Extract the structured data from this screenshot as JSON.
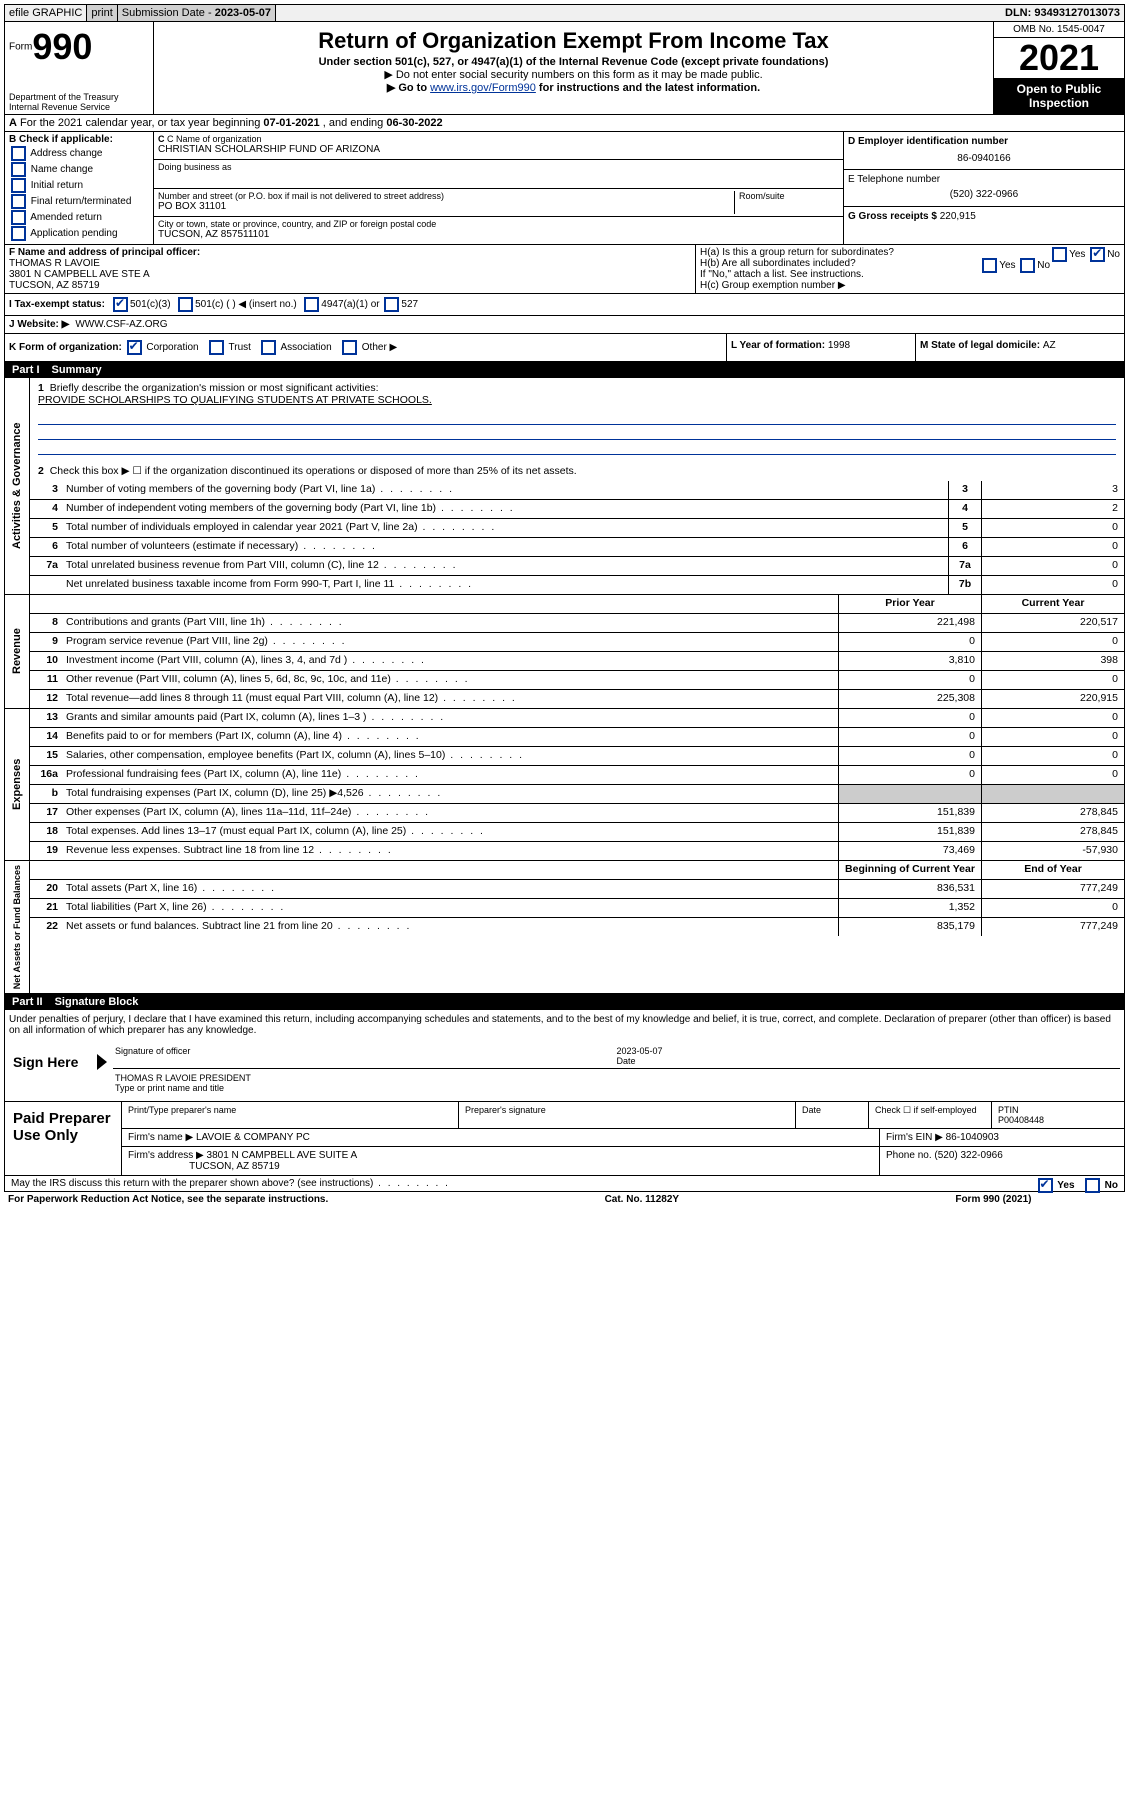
{
  "topbar": {
    "efile": "efile GRAPHIC",
    "print": "print",
    "submission_label": "Submission Date - ",
    "submission_date": "2023-05-07",
    "dln_label": "DLN: ",
    "dln": "93493127013073"
  },
  "header": {
    "form_prefix": "Form",
    "form_number": "990",
    "dept": "Department of the Treasury",
    "irs": "Internal Revenue Service",
    "title": "Return of Organization Exempt From Income Tax",
    "subtitle": "Under section 501(c), 527, or 4947(a)(1) of the Internal Revenue Code (except private foundations)",
    "note1": "▶ Do not enter social security numbers on this form as it may be made public.",
    "note2_pre": "▶ Go to ",
    "note2_link": "www.irs.gov/Form990",
    "note2_post": " for instructions and the latest information.",
    "omb": "OMB No. 1545-0047",
    "year": "2021",
    "open": "Open to Public Inspection"
  },
  "row_a": {
    "text_pre": "For the 2021 calendar year, or tax year beginning ",
    "begin": "07-01-2021",
    "text_mid": " , and ending ",
    "end": "06-30-2022"
  },
  "col_b": {
    "header": "B Check if applicable:",
    "items": [
      "Address change",
      "Name change",
      "Initial return",
      "Final return/terminated",
      "Amended return",
      "Application pending"
    ]
  },
  "col_c": {
    "name_label": "C Name of organization",
    "name": "CHRISTIAN SCHOLARSHIP FUND OF ARIZONA",
    "dba_label": "Doing business as",
    "dba": "",
    "addr_label": "Number and street (or P.O. box if mail is not delivered to street address)",
    "room_label": "Room/suite",
    "addr": "PO BOX 31101",
    "city_label": "City or town, state or province, country, and ZIP or foreign postal code",
    "city": "TUCSON, AZ  857511101"
  },
  "col_de": {
    "d_label": "D Employer identification number",
    "ein": "86-0940166",
    "e_label": "E Telephone number",
    "phone": "(520) 322-0966",
    "g_label": "G Gross receipts $",
    "gross": "220,915"
  },
  "row_f": {
    "label": "F Name and address of principal officer:",
    "name": "THOMAS R LAVOIE",
    "addr": "3801 N CAMPBELL AVE STE A",
    "city": "TUCSON, AZ  85719"
  },
  "row_h": {
    "ha": "H(a)  Is this a group return for subordinates?",
    "ha_yes": "Yes",
    "ha_no": "No",
    "hb": "H(b)  Are all subordinates included?",
    "hb_yes": "Yes",
    "hb_no": "No",
    "hb_note": "If \"No,\" attach a list. See instructions.",
    "hc": "H(c)  Group exemption number ▶"
  },
  "row_i": {
    "label": "I    Tax-exempt status:",
    "opt1": "501(c)(3)",
    "opt2": "501(c) (  ) ◀ (insert no.)",
    "opt3": "4947(a)(1) or",
    "opt4": "527"
  },
  "row_j": {
    "label": "J   Website: ▶",
    "value": "WWW.CSF-AZ.ORG"
  },
  "row_k": {
    "label": "K Form of organization:",
    "opts": [
      "Corporation",
      "Trust",
      "Association",
      "Other ▶"
    ],
    "l_label": "L Year of formation: ",
    "l_val": "1998",
    "m_label": "M State of legal domicile: ",
    "m_val": "AZ"
  },
  "part1": {
    "number": "Part I",
    "title": "Summary"
  },
  "summary": {
    "vtabs": [
      "Activities & Governance",
      "Revenue",
      "Expenses",
      "Net Assets or Fund Balances"
    ],
    "line1_label": "Briefly describe the organization's mission or most significant activities:",
    "line1_text": "PROVIDE SCHOLARSHIPS TO QUALIFYING STUDENTS AT PRIVATE SCHOOLS.",
    "line2": "Check this box ▶ ☐  if the organization discontinued its operations or disposed of more than 25% of its net assets.",
    "rows_gov": [
      {
        "n": "3",
        "d": "Number of voting members of the governing body (Part VI, line 1a)",
        "b": "3",
        "v": "3"
      },
      {
        "n": "4",
        "d": "Number of independent voting members of the governing body (Part VI, line 1b)",
        "b": "4",
        "v": "2"
      },
      {
        "n": "5",
        "d": "Total number of individuals employed in calendar year 2021 (Part V, line 2a)",
        "b": "5",
        "v": "0"
      },
      {
        "n": "6",
        "d": "Total number of volunteers (estimate if necessary)",
        "b": "6",
        "v": "0"
      },
      {
        "n": "7a",
        "d": "Total unrelated business revenue from Part VIII, column (C), line 12",
        "b": "7a",
        "v": "0"
      },
      {
        "n": "",
        "d": "Net unrelated business taxable income from Form 990-T, Part I, line 11",
        "b": "7b",
        "v": "0"
      }
    ],
    "col_headers": {
      "prior": "Prior Year",
      "current": "Current Year"
    },
    "rows_rev": [
      {
        "n": "8",
        "d": "Contributions and grants (Part VIII, line 1h)",
        "p": "221,498",
        "c": "220,517"
      },
      {
        "n": "9",
        "d": "Program service revenue (Part VIII, line 2g)",
        "p": "0",
        "c": "0"
      },
      {
        "n": "10",
        "d": "Investment income (Part VIII, column (A), lines 3, 4, and 7d )",
        "p": "3,810",
        "c": "398"
      },
      {
        "n": "11",
        "d": "Other revenue (Part VIII, column (A), lines 5, 6d, 8c, 9c, 10c, and 11e)",
        "p": "0",
        "c": "0"
      },
      {
        "n": "12",
        "d": "Total revenue—add lines 8 through 11 (must equal Part VIII, column (A), line 12)",
        "p": "225,308",
        "c": "220,915"
      }
    ],
    "rows_exp": [
      {
        "n": "13",
        "d": "Grants and similar amounts paid (Part IX, column (A), lines 1–3 )",
        "p": "0",
        "c": "0"
      },
      {
        "n": "14",
        "d": "Benefits paid to or for members (Part IX, column (A), line 4)",
        "p": "0",
        "c": "0"
      },
      {
        "n": "15",
        "d": "Salaries, other compensation, employee benefits (Part IX, column (A), lines 5–10)",
        "p": "0",
        "c": "0"
      },
      {
        "n": "16a",
        "d": "Professional fundraising fees (Part IX, column (A), line 11e)",
        "p": "0",
        "c": "0"
      },
      {
        "n": "b",
        "d": "Total fundraising expenses (Part IX, column (D), line 25) ▶4,526",
        "p": "",
        "c": "",
        "shade": true
      },
      {
        "n": "17",
        "d": "Other expenses (Part IX, column (A), lines 11a–11d, 11f–24e)",
        "p": "151,839",
        "c": "278,845"
      },
      {
        "n": "18",
        "d": "Total expenses. Add lines 13–17 (must equal Part IX, column (A), line 25)",
        "p": "151,839",
        "c": "278,845"
      },
      {
        "n": "19",
        "d": "Revenue less expenses. Subtract line 18 from line 12",
        "p": "73,469",
        "c": "-57,930"
      }
    ],
    "col_headers2": {
      "begin": "Beginning of Current Year",
      "end": "End of Year"
    },
    "rows_net": [
      {
        "n": "20",
        "d": "Total assets (Part X, line 16)",
        "p": "836,531",
        "c": "777,249"
      },
      {
        "n": "21",
        "d": "Total liabilities (Part X, line 26)",
        "p": "1,352",
        "c": "0"
      },
      {
        "n": "22",
        "d": "Net assets or fund balances. Subtract line 21 from line 20",
        "p": "835,179",
        "c": "777,249"
      }
    ]
  },
  "part2": {
    "number": "Part II",
    "title": "Signature Block",
    "penalty": "Under penalties of perjury, I declare that I have examined this return, including accompanying schedules and statements, and to the best of my knowledge and belief, it is true, correct, and complete. Declaration of preparer (other than officer) is based on all information of which preparer has any knowledge."
  },
  "sign": {
    "label": "Sign Here",
    "sig_label": "Signature of officer",
    "date_label": "Date",
    "date": "2023-05-07",
    "name": "THOMAS R LAVOIE PRESIDENT",
    "name_label": "Type or print name and title"
  },
  "preparer": {
    "label": "Paid Preparer Use Only",
    "h1": "Print/Type preparer's name",
    "h2": "Preparer's signature",
    "h3": "Date",
    "h4_pre": "Check ☐ if self-employed",
    "h5": "PTIN",
    "ptin": "P00408448",
    "firm_label": "Firm's name    ▶",
    "firm": "LAVOIE & COMPANY PC",
    "ein_label": "Firm's EIN ▶",
    "ein": "86-1040903",
    "addr_label": "Firm's address ▶",
    "addr": "3801 N CAMPBELL AVE SUITE A",
    "addr2": "TUCSON, AZ  85719",
    "phone_label": "Phone no. ",
    "phone": "(520) 322-0966"
  },
  "may_irs": {
    "text": "May the IRS discuss this return with the preparer shown above? (see instructions)",
    "yes": "Yes",
    "no": "No"
  },
  "footer": {
    "left": "For Paperwork Reduction Act Notice, see the separate instructions.",
    "mid": "Cat. No. 11282Y",
    "right_pre": "Form ",
    "right_form": "990",
    "right_post": " (2021)"
  }
}
